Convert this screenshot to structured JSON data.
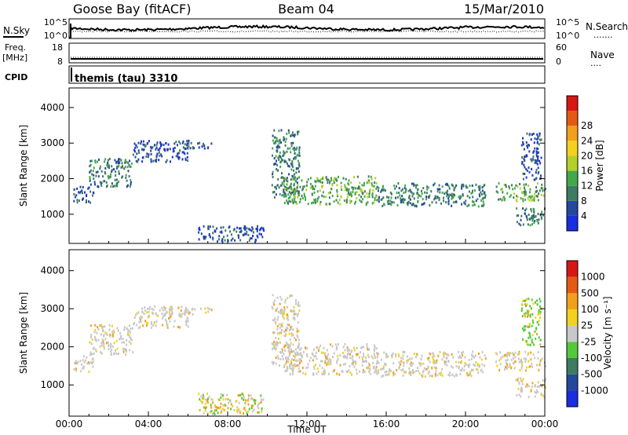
{
  "header": {
    "station": "Goose Bay (fitACF)",
    "beam": "Beam 04",
    "date": "15/Mar/2010"
  },
  "noise_panel": {
    "left_label": "N.Sky",
    "left_ticks": [
      "10^5",
      "10^0"
    ],
    "right_ticks": [
      "10^5",
      "10^0"
    ],
    "right_label": "N.Search",
    "right_legend_sample": "......."
  },
  "freq_panel": {
    "left_label_line1": "Freq.",
    "left_label_line2": "[MHz]",
    "left_ticks": [
      "18",
      "8"
    ],
    "right_ticks": [
      "60",
      "0"
    ],
    "right_label": "Nave",
    "right_legend_sample": "....",
    "cpid_label": "CPID"
  },
  "cpid_panel": {
    "text": "themis (tau) 3310"
  },
  "chart_data": [
    {
      "type": "heatmap",
      "name": "power",
      "ylabel": "Slant Range [km]",
      "ylim": [
        180,
        4550
      ],
      "yticks": [
        "1000",
        "2000",
        "3000",
        "4000"
      ],
      "xlabel": "",
      "colorbar_label": "Power [dB]",
      "colorbar_ticks": [
        "4",
        "8",
        "12",
        "16",
        "20",
        "24",
        "28"
      ],
      "colorbar_colors": [
        "#1a2de0",
        "#24489c",
        "#3f7a62",
        "#43a84a",
        "#b5cf2a",
        "#f2d21e",
        "#f2a01c",
        "#e45a14",
        "#d81616"
      ],
      "echo_regions": [
        {
          "t0": 0.2,
          "t1": 1.2,
          "r0": 1350,
          "r1": 1800,
          "level": 1
        },
        {
          "t0": 1.0,
          "t1": 3.2,
          "r0": 1800,
          "r1": 2600,
          "level": 2
        },
        {
          "t0": 3.2,
          "t1": 6.0,
          "r0": 2500,
          "r1": 3100,
          "level": 1
        },
        {
          "t0": 5.8,
          "t1": 7.2,
          "r0": 2850,
          "r1": 3050,
          "level": 1
        },
        {
          "t0": 6.5,
          "t1": 9.8,
          "r0": 250,
          "r1": 700,
          "level": 1
        },
        {
          "t0": 10.2,
          "t1": 11.6,
          "r0": 1500,
          "r1": 3400,
          "level": 2
        },
        {
          "t0": 10.8,
          "t1": 15.5,
          "r0": 1300,
          "r1": 2100,
          "level": 3
        },
        {
          "t0": 15.5,
          "t1": 21.0,
          "r0": 1250,
          "r1": 1900,
          "level": 2
        },
        {
          "t0": 21.5,
          "t1": 24.0,
          "r0": 1400,
          "r1": 1900,
          "level": 3
        },
        {
          "t0": 22.5,
          "t1": 24.0,
          "r0": 700,
          "r1": 1200,
          "level": 2
        },
        {
          "t0": 22.8,
          "t1": 23.8,
          "r0": 2000,
          "r1": 3300,
          "level": 1
        }
      ]
    },
    {
      "type": "heatmap",
      "name": "velocity",
      "ylabel": "Slant Range [km]",
      "ylim": [
        180,
        4550
      ],
      "yticks": [
        "1000",
        "2000",
        "3000",
        "4000"
      ],
      "xlabel": "Time UT",
      "xticks": [
        "00:00",
        "04:00",
        "08:00",
        "12:00",
        "16:00",
        "20:00",
        "00:00"
      ],
      "colorbar_label": "Velocity [m s⁻¹]",
      "colorbar_ticks": [
        "1000",
        "500",
        "100",
        "25",
        "-25",
        "-100",
        "-500",
        "-1000"
      ],
      "colorbar_colors": [
        "#1a2de0",
        "#24489c",
        "#3f7a62",
        "#55c83a",
        "#c8c8c8",
        "#f2d21e",
        "#f2a01c",
        "#e45a14",
        "#d81616"
      ],
      "echo_regions": [
        {
          "t0": 0.2,
          "t1": 1.2,
          "r0": 1350,
          "r1": 1800,
          "level": 0
        },
        {
          "t0": 1.0,
          "t1": 3.2,
          "r0": 1800,
          "r1": 2600,
          "level": 0
        },
        {
          "t0": 3.2,
          "t1": 6.0,
          "r0": 2500,
          "r1": 3100,
          "level": 0
        },
        {
          "t0": 5.8,
          "t1": 7.2,
          "r0": 2850,
          "r1": 3050,
          "level": 0
        },
        {
          "t0": 6.5,
          "t1": 9.8,
          "r0": 250,
          "r1": 800,
          "level": 1
        },
        {
          "t0": 10.2,
          "t1": 11.6,
          "r0": 1500,
          "r1": 3400,
          "level": 0
        },
        {
          "t0": 10.8,
          "t1": 15.5,
          "r0": 1300,
          "r1": 2100,
          "level": 0
        },
        {
          "t0": 15.5,
          "t1": 21.0,
          "r0": 1250,
          "r1": 1900,
          "level": 0
        },
        {
          "t0": 21.5,
          "t1": 24.0,
          "r0": 1400,
          "r1": 1900,
          "level": 0
        },
        {
          "t0": 22.5,
          "t1": 24.0,
          "r0": 700,
          "r1": 1200,
          "level": 0
        },
        {
          "t0": 22.8,
          "t1": 23.8,
          "r0": 2000,
          "r1": 3300,
          "level": 2
        }
      ]
    }
  ]
}
